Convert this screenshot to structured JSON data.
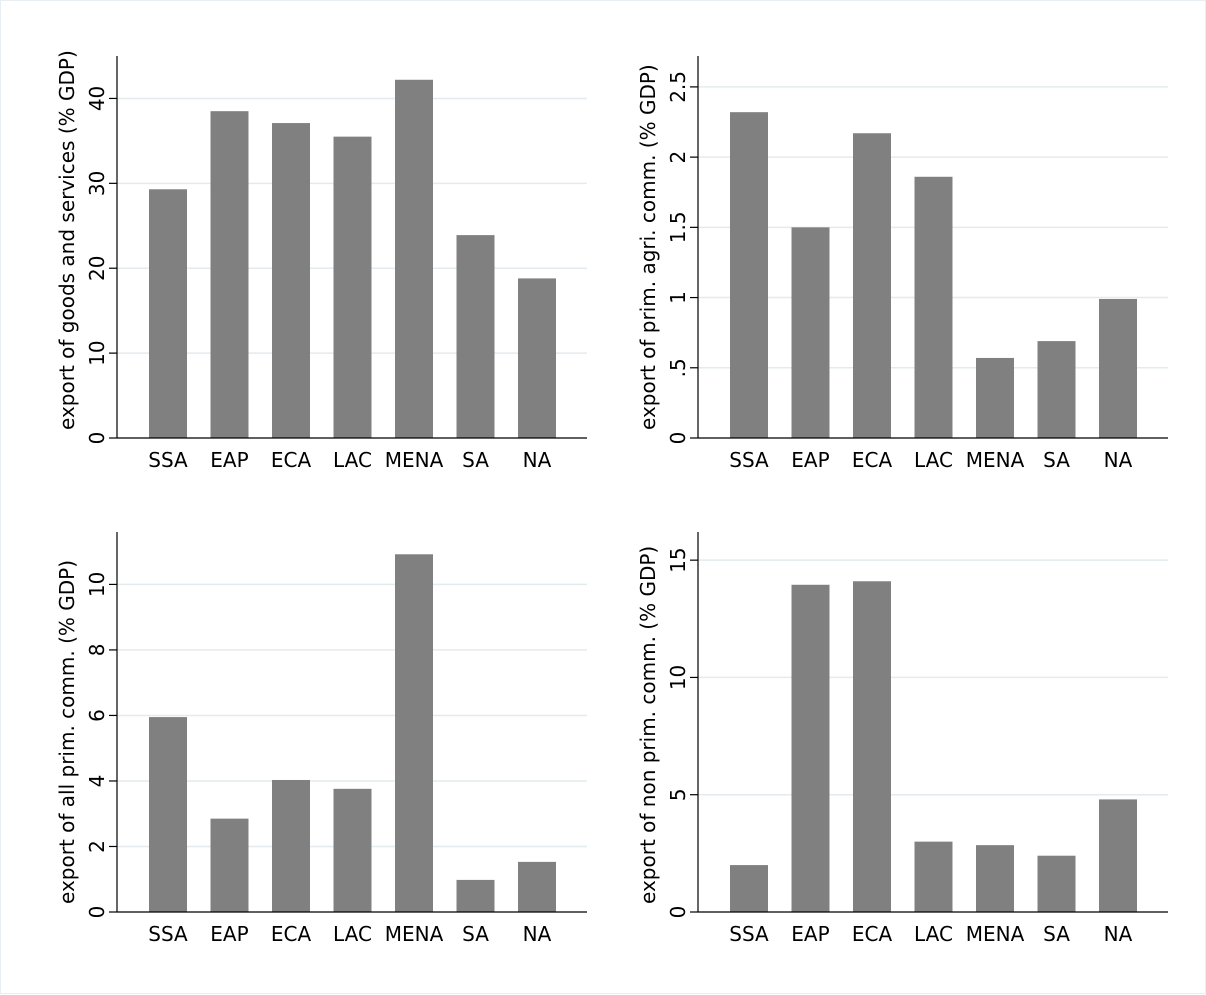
{
  "chart_data": [
    {
      "type": "bar",
      "title": "",
      "xlabel": "",
      "ylabel": "export of goods and services (% GDP)",
      "categories": [
        "SSA",
        "EAP",
        "ECA",
        "LAC",
        "MENA",
        "SA",
        "NA"
      ],
      "values": [
        29.3,
        38.5,
        37.1,
        35.5,
        42.2,
        23.9,
        18.8
      ],
      "ylim": [
        0,
        45
      ],
      "yticks": [
        0,
        10,
        20,
        30,
        40
      ],
      "ytick_labels": [
        "0",
        "10",
        "20",
        "30",
        "40"
      ],
      "grid": true,
      "bar_color": "#808080"
    },
    {
      "type": "bar",
      "title": "",
      "xlabel": "",
      "ylabel": "export of prim. agri. comm. (% GDP)",
      "categories": [
        "SSA",
        "EAP",
        "ECA",
        "LAC",
        "MENA",
        "SA",
        "NA"
      ],
      "values": [
        2.32,
        1.5,
        2.17,
        1.86,
        0.57,
        0.69,
        0.99
      ],
      "ylim": [
        0,
        2.72
      ],
      "yticks": [
        0,
        0.5,
        1,
        1.5,
        2,
        2.5
      ],
      "ytick_labels": [
        "0",
        ".5",
        "1",
        "1.5",
        "2",
        "2.5"
      ],
      "grid": true,
      "bar_color": "#808080"
    },
    {
      "type": "bar",
      "title": "",
      "xlabel": "",
      "ylabel": "export of all prim. comm. (% GDP)",
      "categories": [
        "SSA",
        "EAP",
        "ECA",
        "LAC",
        "MENA",
        "SA",
        "NA"
      ],
      "values": [
        5.95,
        2.85,
        4.03,
        3.76,
        10.92,
        0.98,
        1.53
      ],
      "ylim": [
        0,
        11.6
      ],
      "yticks": [
        0,
        2,
        4,
        6,
        8,
        10
      ],
      "ytick_labels": [
        "0",
        "2",
        "4",
        "6",
        "8",
        "10"
      ],
      "grid": true,
      "bar_color": "#808080"
    },
    {
      "type": "bar",
      "title": "",
      "xlabel": "",
      "ylabel": "export of non prim. comm. (% GDP)",
      "categories": [
        "SSA",
        "EAP",
        "ECA",
        "LAC",
        "MENA",
        "SA",
        "NA"
      ],
      "values": [
        2.0,
        13.95,
        14.1,
        3.0,
        2.85,
        2.4,
        4.8
      ],
      "ylim": [
        0,
        16.2
      ],
      "yticks": [
        0,
        5,
        10,
        15
      ],
      "ytick_labels": [
        "0",
        "5",
        "10",
        "15"
      ],
      "grid": true,
      "bar_color": "#808080"
    }
  ]
}
